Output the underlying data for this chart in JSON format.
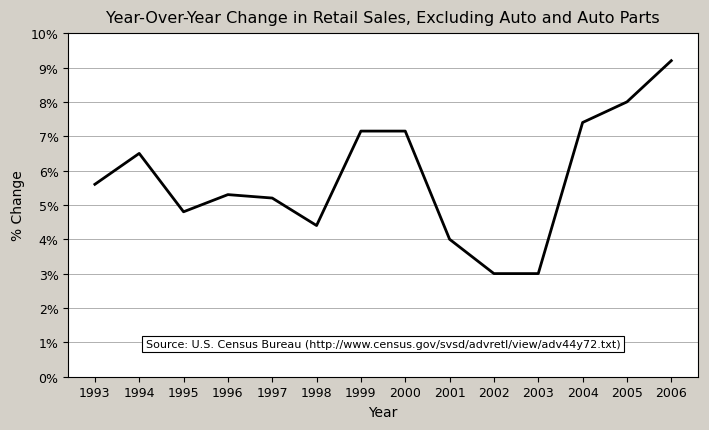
{
  "title": "Year-Over-Year Change in Retail Sales, Excluding Auto and Auto Parts",
  "xlabel": "Year",
  "ylabel": "% Change",
  "years": [
    1993,
    1994,
    1995,
    1996,
    1997,
    1998,
    1999,
    2000,
    2001,
    2002,
    2003,
    2004,
    2005,
    2006
  ],
  "values": [
    5.6,
    6.5,
    4.8,
    5.3,
    5.2,
    4.4,
    7.15,
    7.15,
    4.0,
    3.0,
    3.0,
    7.4,
    8.0,
    9.2
  ],
  "line_color": "#000000",
  "line_width": 2.0,
  "fig_bg_color": "#d4d0c8",
  "plot_bg_color": "#ffffff",
  "grid_color": "#b0b0b0",
  "ylim": [
    0,
    10
  ],
  "ytick_values": [
    0,
    1,
    2,
    3,
    4,
    5,
    6,
    7,
    8,
    9,
    10
  ],
  "source_text": "Source: U.S. Census Bureau (http://www.census.gov/svsd/advretl/view/adv44y72.txt)",
  "title_fontsize": 11.5,
  "label_fontsize": 10,
  "tick_fontsize": 9,
  "source_fontsize": 8
}
